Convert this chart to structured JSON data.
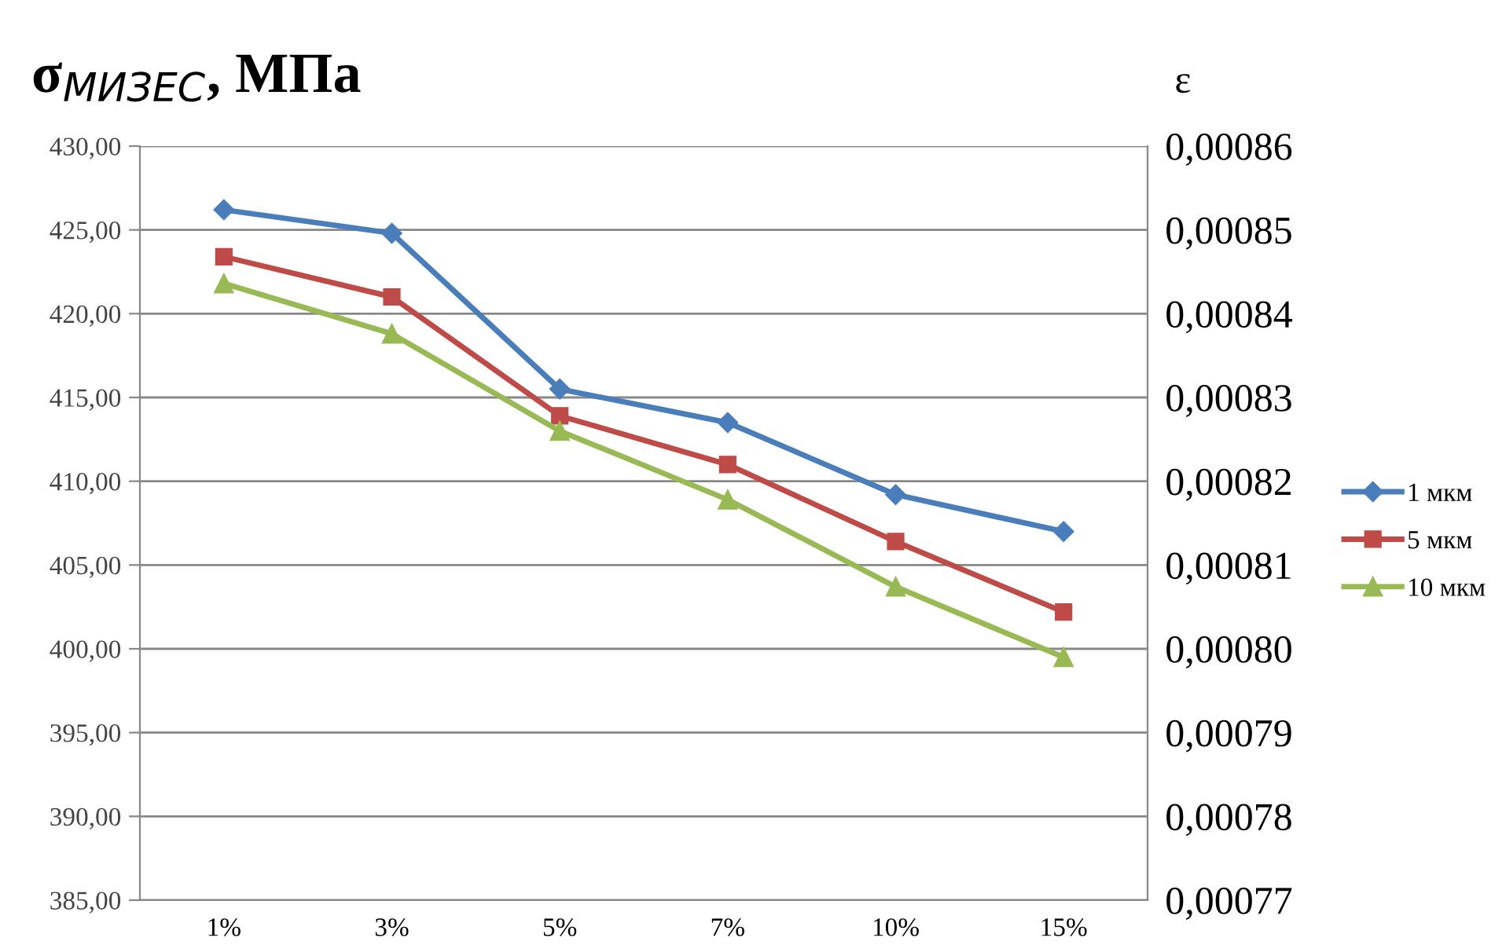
{
  "chart_data": {
    "type": "line",
    "title": "σ$_{МИЗЕС}$, МПа",
    "y2label": "ε",
    "categories": [
      "1%",
      "3%",
      "5%",
      "7%",
      "10%",
      "15%"
    ],
    "series": [
      {
        "name": "1 мкм",
        "color": "#4a7ebb",
        "marker": "diamond",
        "values": [
          426.2,
          424.8,
          415.5,
          413.5,
          409.2,
          407.0
        ]
      },
      {
        "name": "5 мкм",
        "color": "#be4b48",
        "marker": "square",
        "values": [
          423.4,
          421.0,
          413.9,
          411.0,
          406.4,
          402.2
        ]
      },
      {
        "name": "10 мкм",
        "color": "#98b954",
        "marker": "triangle",
        "values": [
          421.8,
          418.8,
          413.0,
          408.9,
          403.7,
          399.5
        ]
      }
    ],
    "ylim": [
      385,
      430
    ],
    "yticks": [
      {
        "value": 385,
        "label": "385,00"
      },
      {
        "value": 390,
        "label": "390,00"
      },
      {
        "value": 395,
        "label": "395,00"
      },
      {
        "value": 400,
        "label": "400,00"
      },
      {
        "value": 405,
        "label": "405,00"
      },
      {
        "value": 410,
        "label": "410,00"
      },
      {
        "value": 415,
        "label": "415,00"
      },
      {
        "value": 420,
        "label": "420,00"
      },
      {
        "value": 425,
        "label": "425,00"
      },
      {
        "value": 430,
        "label": "430,00"
      }
    ],
    "y2lim": [
      0.00077,
      0.00086
    ],
    "y2ticks": [
      {
        "value": 0.00077,
        "label": "0,00077"
      },
      {
        "value": 0.00078,
        "label": "0,00078"
      },
      {
        "value": 0.00079,
        "label": "0,00079"
      },
      {
        "value": 0.0008,
        "label": "0,00080"
      },
      {
        "value": 0.00081,
        "label": "0,00081"
      },
      {
        "value": 0.00082,
        "label": "0,00082"
      },
      {
        "value": 0.00083,
        "label": "0,00083"
      },
      {
        "value": 0.00084,
        "label": "0,00084"
      },
      {
        "value": 0.00085,
        "label": "0,00085"
      },
      {
        "value": 0.00086,
        "label": "0,00086"
      }
    ],
    "grid": "y",
    "legend": "right",
    "line_style": "solid"
  }
}
